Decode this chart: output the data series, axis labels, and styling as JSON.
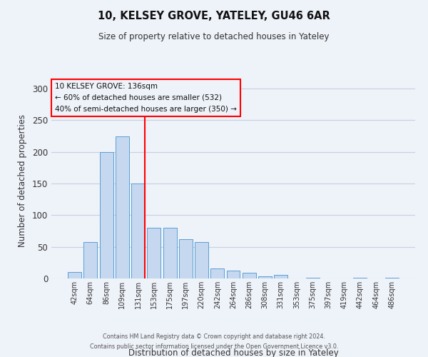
{
  "title": "10, KELSEY GROVE, YATELEY, GU46 6AR",
  "subtitle": "Size of property relative to detached houses in Yateley",
  "xlabel": "Distribution of detached houses by size in Yateley",
  "ylabel": "Number of detached properties",
  "bar_labels": [
    "42sqm",
    "64sqm",
    "86sqm",
    "109sqm",
    "131sqm",
    "153sqm",
    "175sqm",
    "197sqm",
    "220sqm",
    "242sqm",
    "264sqm",
    "286sqm",
    "308sqm",
    "331sqm",
    "353sqm",
    "375sqm",
    "397sqm",
    "419sqm",
    "442sqm",
    "464sqm",
    "486sqm"
  ],
  "bar_values": [
    10,
    58,
    199,
    224,
    150,
    80,
    80,
    62,
    58,
    16,
    12,
    9,
    3,
    6,
    0,
    1,
    0,
    0,
    1,
    0,
    1
  ],
  "bar_color": "#c5d8f0",
  "bar_edge_color": "#5a9fd4",
  "vline_color": "red",
  "vline_index": 4,
  "annotation_title": "10 KELSEY GROVE: 136sqm",
  "annotation_line1": "← 60% of detached houses are smaller (532)",
  "annotation_line2": "40% of semi-detached houses are larger (350) →",
  "annotation_box_color": "red",
  "ylim": [
    0,
    310
  ],
  "yticks": [
    0,
    50,
    100,
    150,
    200,
    250,
    300
  ],
  "footer1": "Contains HM Land Registry data © Crown copyright and database right 2024.",
  "footer2": "Contains public sector information licensed under the Open Government Licence v3.0.",
  "background_color": "#eef2f9"
}
